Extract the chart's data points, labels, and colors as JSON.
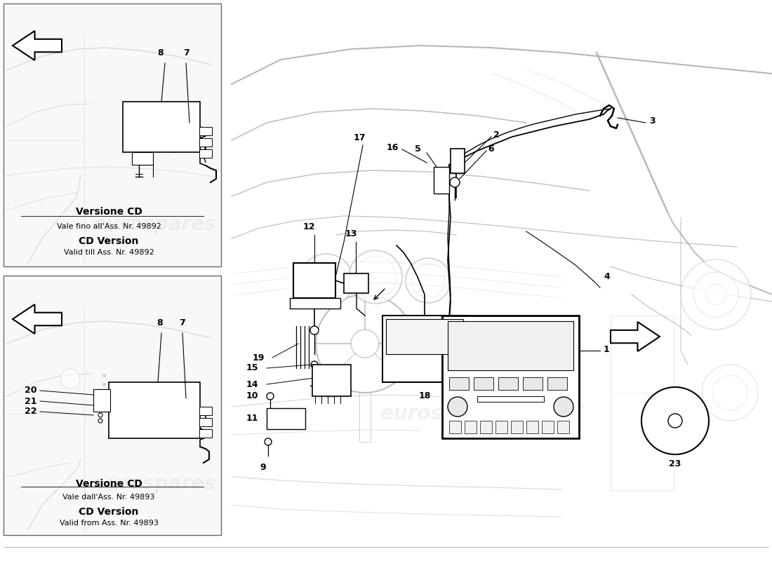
{
  "bg_color": "#ffffff",
  "lc": "#000000",
  "glc": "#b0b0b0",
  "glc2": "#d0d0d0",
  "top_label_bold": "Versione CD",
  "top_label_line2": "Vale fino all'Ass. Nr. 49892",
  "top_label_line3": "CD Version",
  "top_label_line4": "Valid till Ass. Nr. 49892",
  "bot_label_bold": "Versione CD",
  "bot_label_line2": "Vale dall'Ass. Nr. 49893",
  "bot_label_line3": "CD Version",
  "bot_label_line4": "Valid from Ass. Nr. 49893",
  "watermark": "eurospares",
  "figsize": [
    11.0,
    8.0
  ],
  "dpi": 100
}
